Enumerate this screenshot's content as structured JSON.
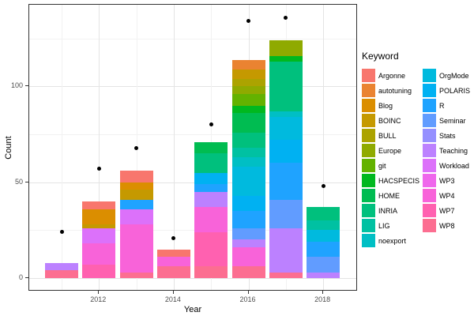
{
  "axes": {
    "x": {
      "label": "Year",
      "ticks": [
        {
          "label": "2012",
          "year": 2012
        },
        {
          "label": "2014",
          "year": 2014
        },
        {
          "label": "2016",
          "year": 2016
        },
        {
          "label": "2018",
          "year": 2018
        }
      ]
    },
    "y": {
      "label": "Count",
      "ticks": [
        {
          "label": "0",
          "value": 0
        },
        {
          "label": "50",
          "value": 50
        },
        {
          "label": "100",
          "value": 100
        }
      ]
    }
  },
  "legend": {
    "title": "Keyword",
    "position": "right",
    "columns": [
      [
        "Argonne",
        "autotuning",
        "Blog",
        "BOINC",
        "BULL",
        "Europe",
        "git",
        "HACSPECIS",
        "HOME",
        "INRIA",
        "LIG",
        "noexport"
      ],
      [
        "OrgMode",
        "POLARIS",
        "R",
        "Seminar",
        "Stats",
        "Teaching",
        "Workload",
        "WP3",
        "WP4",
        "WP7",
        "WP8"
      ]
    ]
  },
  "chart_data": {
    "type": "bar",
    "subtype": "stacked-bars-with-point-overlay",
    "title": "",
    "xlabel": "Year",
    "ylabel": "Count",
    "ylim": [
      0,
      137
    ],
    "grid": true,
    "minor_y_gridlines": [
      25,
      75,
      125
    ],
    "minor_x_gridlines": [
      2011,
      2013,
      2015,
      2017
    ],
    "colors": {
      "Argonne": "#F8766D",
      "autotuning": "#EA8331",
      "Blog": "#DB8E00",
      "BOINC": "#C59900",
      "BULL": "#ACA300",
      "Europe": "#8FAA00",
      "git": "#63B200",
      "HACSPECIS": "#00B81F",
      "HOME": "#00BC51",
      "INRIA": "#00C07D",
      "LIG": "#00C1A2",
      "noexport": "#00BFC4",
      "OrgMode": "#00BADE",
      "POLARIS": "#00B1F2",
      "R": "#1FA3FF",
      "Seminar": "#619CFF",
      "Stats": "#9590FF",
      "Teaching": "#BC81FF",
      "Workload": "#DC71FA",
      "WP3": "#EF67EC",
      "WP4": "#F863D9",
      "WP7": "#FF61B0",
      "WP8": "#FC6E91",
      "point": "#000000"
    },
    "bars": [
      {
        "year": 2011,
        "total": 8,
        "point": 24,
        "segments": [
          {
            "keyword": "WP8",
            "value": 4
          },
          {
            "keyword": "Teaching",
            "value": 4
          }
        ]
      },
      {
        "year": 2012,
        "total": 40,
        "point": 57,
        "segments": [
          {
            "keyword": "WP7",
            "value": 7
          },
          {
            "keyword": "WP4",
            "value": 11
          },
          {
            "keyword": "Workload",
            "value": 8
          },
          {
            "keyword": "BOINC",
            "value": 2
          },
          {
            "keyword": "Blog",
            "value": 8
          },
          {
            "keyword": "Argonne",
            "value": 4
          }
        ]
      },
      {
        "year": 2013,
        "total": 56,
        "point": 68,
        "segments": [
          {
            "keyword": "WP8",
            "value": 3
          },
          {
            "keyword": "WP4",
            "value": 25
          },
          {
            "keyword": "Workload",
            "value": 8
          },
          {
            "keyword": "R",
            "value": 5
          },
          {
            "keyword": "BOINC",
            "value": 5
          },
          {
            "keyword": "Blog",
            "value": 4
          },
          {
            "keyword": "Argonne",
            "value": 6
          }
        ]
      },
      {
        "year": 2014,
        "total": 15,
        "point": 21,
        "segments": [
          {
            "keyword": "WP8",
            "value": 6
          },
          {
            "keyword": "WP4",
            "value": 5
          },
          {
            "keyword": "Argonne",
            "value": 4
          }
        ]
      },
      {
        "year": 2015,
        "total": 71,
        "point": 80,
        "segments": [
          {
            "keyword": "WP8",
            "value": 6
          },
          {
            "keyword": "WP7",
            "value": 18
          },
          {
            "keyword": "WP4",
            "value": 13
          },
          {
            "keyword": "Teaching",
            "value": 8
          },
          {
            "keyword": "R",
            "value": 4
          },
          {
            "keyword": "POLARIS",
            "value": 6
          },
          {
            "keyword": "INRIA",
            "value": 10
          },
          {
            "keyword": "HOME",
            "value": 6
          }
        ]
      },
      {
        "year": 2016,
        "total": 114,
        "point": 134,
        "segments": [
          {
            "keyword": "WP8",
            "value": 6
          },
          {
            "keyword": "WP4",
            "value": 10
          },
          {
            "keyword": "Teaching",
            "value": 4
          },
          {
            "keyword": "Seminar",
            "value": 6
          },
          {
            "keyword": "R",
            "value": 9
          },
          {
            "keyword": "POLARIS",
            "value": 8
          },
          {
            "keyword": "OrgMode",
            "value": 15
          },
          {
            "keyword": "noexport",
            "value": 5
          },
          {
            "keyword": "LIG",
            "value": 5
          },
          {
            "keyword": "INRIA",
            "value": 8
          },
          {
            "keyword": "HOME",
            "value": 10
          },
          {
            "keyword": "HACSPECIS",
            "value": 4
          },
          {
            "keyword": "git",
            "value": 6
          },
          {
            "keyword": "Europe",
            "value": 4
          },
          {
            "keyword": "BULL",
            "value": 4
          },
          {
            "keyword": "BOINC",
            "value": 5
          },
          {
            "keyword": "autotuning",
            "value": 5
          }
        ]
      },
      {
        "year": 2017,
        "total": 124,
        "point": 136,
        "segments": [
          {
            "keyword": "WP8",
            "value": 3
          },
          {
            "keyword": "Teaching",
            "value": 23
          },
          {
            "keyword": "Seminar",
            "value": 15
          },
          {
            "keyword": "R",
            "value": 19
          },
          {
            "keyword": "POLARIS",
            "value": 12
          },
          {
            "keyword": "OrgMode",
            "value": 12
          },
          {
            "keyword": "noexport",
            "value": 3
          },
          {
            "keyword": "INRIA",
            "value": 26
          },
          {
            "keyword": "HACSPECIS",
            "value": 3
          },
          {
            "keyword": "Europe",
            "value": 8
          }
        ]
      },
      {
        "year": 2018,
        "total": 37,
        "point": 48,
        "segments": [
          {
            "keyword": "Teaching",
            "value": 3
          },
          {
            "keyword": "Seminar",
            "value": 8
          },
          {
            "keyword": "R",
            "value": 8
          },
          {
            "keyword": "OrgMode",
            "value": 6
          },
          {
            "keyword": "LIG",
            "value": 5
          },
          {
            "keyword": "INRIA",
            "value": 7
          }
        ]
      }
    ]
  },
  "theme": {
    "panel_bg": "#FFFFFF",
    "panel_border": "#333333",
    "grid_major": "#E4E4E4",
    "grid_minor": "#F2F2F2",
    "tick_text": "#4D4D4D"
  }
}
